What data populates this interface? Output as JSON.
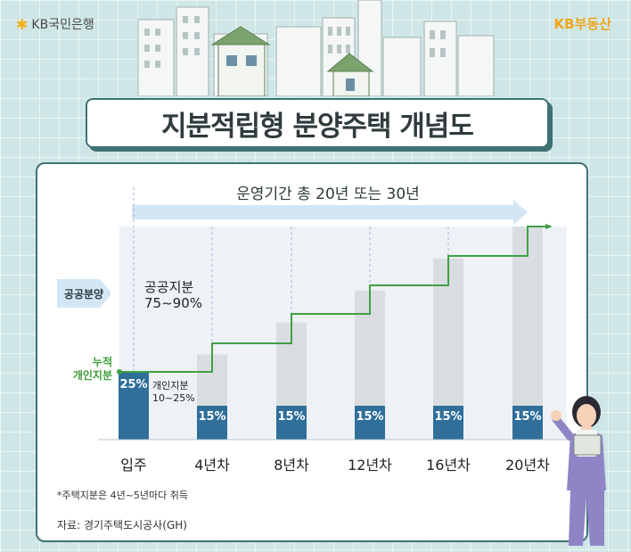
{
  "header": {
    "bank_logo_text": "KB국민은행",
    "brand_right": "KB부동산",
    "title": "지분적립형 분양주택 개념도"
  },
  "diagram": {
    "period_label": "운영기간 총 20년 또는 30년",
    "public_label": "공공분양",
    "cumulative_label_line1": "누적",
    "cumulative_label_line2": "개인지분",
    "public_share_line1": "공공지분",
    "public_share_line2": "75~90%",
    "individual_share_line1": "개인지분",
    "individual_share_line2": "10~25%",
    "initial_pct": "25%",
    "step_pct": "15%",
    "colors": {
      "bar_blue": "#2f6f9a",
      "step_green": "#3fa046",
      "arrow_blue": "#d2e6f6",
      "gray_bar": "#d9dde2"
    }
  },
  "chart_data": {
    "type": "bar",
    "categories": [
      "입주",
      "4년차",
      "8년차",
      "12년차",
      "16년차",
      "20년차"
    ],
    "series": [
      {
        "values": [
          25,
          15,
          15,
          15,
          15,
          15
        ]
      }
    ],
    "cumulative_individual_share_pct": [
      25,
      40,
      55,
      70,
      85,
      100
    ]
  },
  "footer": {
    "note": "*주택지분은 4년~5년마다 취득",
    "source": "자료: 경기주택도시공사(GH)"
  }
}
